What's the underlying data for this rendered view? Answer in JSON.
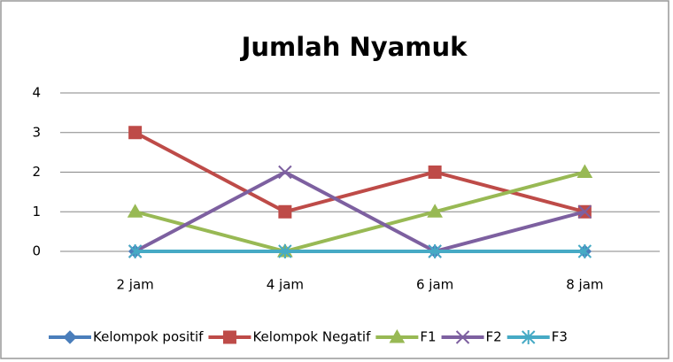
{
  "chart_data": {
    "type": "line",
    "title": "Jumlah Nyamuk",
    "categories": [
      "2 jam",
      "4 jam",
      "6 jam",
      "8 jam"
    ],
    "series": [
      {
        "name": "Kelompok positif",
        "color": "#4a7ebb",
        "marker": "diamond",
        "values": [
          0,
          0,
          0,
          0
        ]
      },
      {
        "name": "Kelompok Negatif",
        "color": "#be4b48",
        "marker": "square",
        "values": [
          3,
          1,
          2,
          1
        ]
      },
      {
        "name": "F1",
        "color": "#98b954",
        "marker": "triangle",
        "values": [
          1,
          0,
          1,
          2
        ]
      },
      {
        "name": "F2",
        "color": "#7d60a0",
        "marker": "x",
        "values": [
          0,
          2,
          0,
          1
        ]
      },
      {
        "name": "F3",
        "color": "#46aac5",
        "marker": "asterisk",
        "values": [
          0,
          0,
          0,
          0
        ]
      }
    ],
    "ylim": [
      0,
      4
    ],
    "yticks": [
      0,
      1,
      2,
      3,
      4
    ],
    "grid": true,
    "legend": "bottom"
  }
}
